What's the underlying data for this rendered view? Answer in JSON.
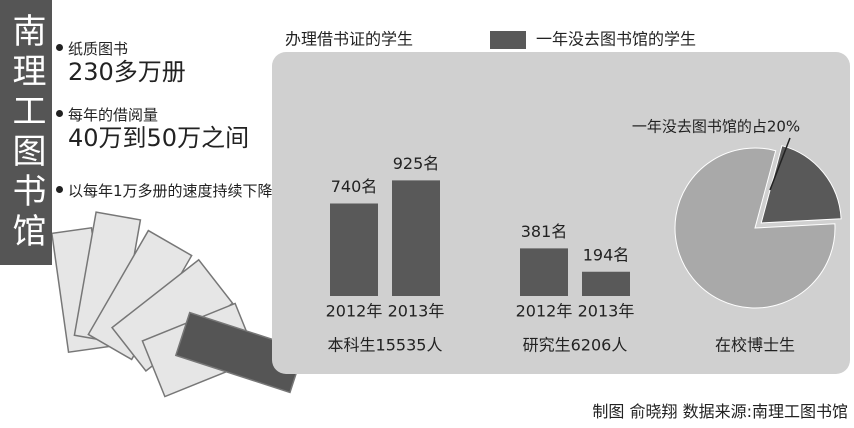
{
  "header": {
    "title": "南理工图书馆"
  },
  "facts": [
    {
      "label": "纸质图书",
      "value": "230多万册"
    },
    {
      "label": "每年的借阅量",
      "value": "40万到50万之间"
    },
    {
      "label": "以每年1万多册的速度持续下降"
    }
  ],
  "legend": [
    {
      "name": "办理借书证的学生",
      "color": "#cfcfcf"
    },
    {
      "name": "一年没去图书馆的学生",
      "color": "#595959"
    }
  ],
  "chart_data": [
    {
      "type": "bar",
      "title": "本科生15535人",
      "categories": [
        "2012年",
        "2013年"
      ],
      "values": [
        740,
        925
      ],
      "value_labels": [
        "740名",
        "925名"
      ],
      "color": "#595959"
    },
    {
      "type": "bar",
      "title": "研究生6206人",
      "categories": [
        "2012年",
        "2013年"
      ],
      "values": [
        381,
        194
      ],
      "value_labels": [
        "381名",
        "194名"
      ],
      "color": "#595959"
    },
    {
      "type": "pie",
      "title": "在校博士生",
      "values": [
        20,
        80
      ],
      "value_labels": [
        "一年没去图书馆的占20%",
        null
      ],
      "colors": [
        "#595959",
        "#a9a9a9"
      ]
    }
  ],
  "credit": "制图 俞晓翔  数据来源:南理工图书馆"
}
